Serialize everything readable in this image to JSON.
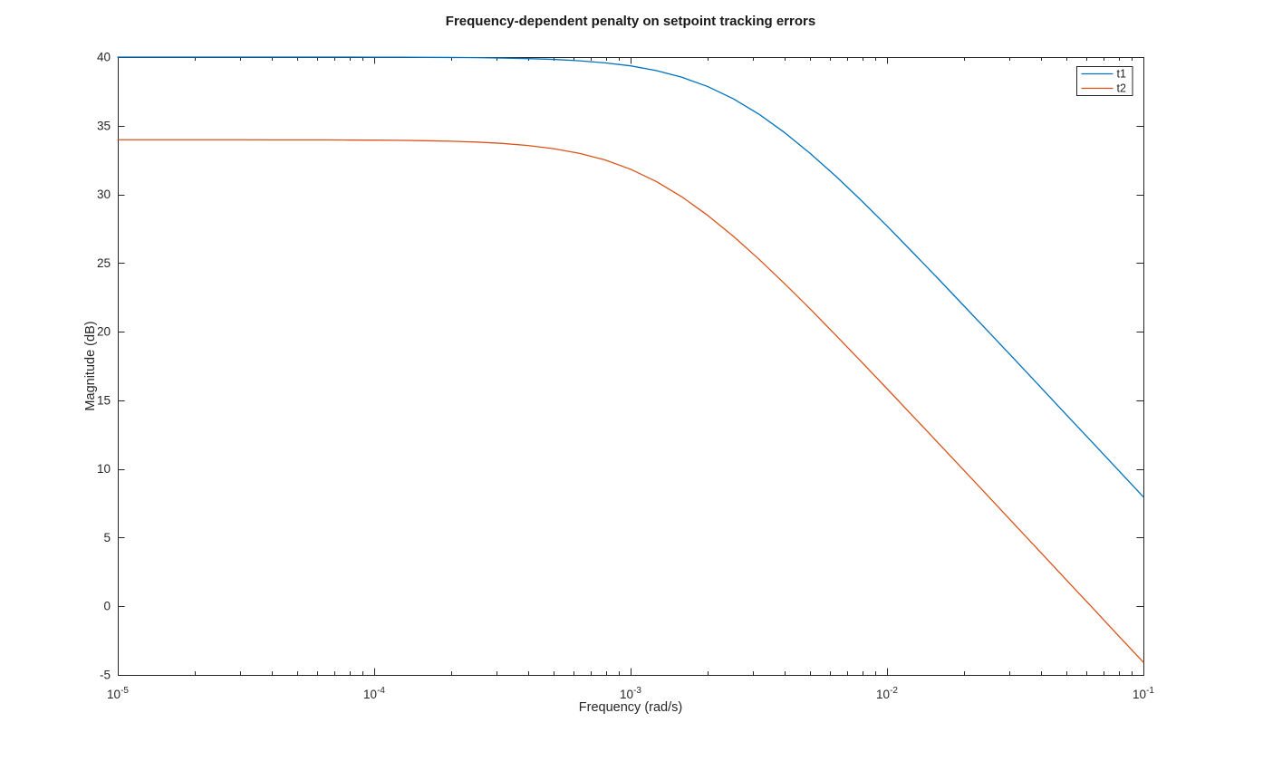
{
  "figure": {
    "background": "#ffffff",
    "axis_color": "#262626",
    "text_color": "#262626",
    "title_color": "#1a1a1a"
  },
  "chart_data": {
    "type": "line",
    "title": "Frequency-dependent penalty on setpoint tracking errors",
    "xlabel": "Frequency (rad/s)",
    "ylabel": "Magnitude (dB)",
    "x_scale": "log",
    "xlim_log10": [
      -5,
      -1
    ],
    "ylim": [
      -5,
      40
    ],
    "grid": false,
    "x_tick_exponents": [
      -5,
      -4,
      -3,
      -2,
      -1
    ],
    "x_tick_base": "10",
    "y_tick_values": [
      -5,
      0,
      5,
      10,
      15,
      20,
      25,
      30,
      35,
      40
    ],
    "legend": {
      "position": "northeast",
      "entries": [
        {
          "label": "t1",
          "color": "#0072BD"
        },
        {
          "label": "t2",
          "color": "#D95319"
        }
      ]
    },
    "x_log10": [
      -5,
      -4.9,
      -4.8,
      -4.7,
      -4.6,
      -4.5,
      -4.4,
      -4.3,
      -4.2,
      -4.1,
      -4,
      -3.9,
      -3.8,
      -3.7,
      -3.6,
      -3.5,
      -3.4,
      -3.3,
      -3.2,
      -3.1,
      -3,
      -2.9,
      -2.8,
      -2.7,
      -2.6,
      -2.5,
      -2.4,
      -2.3,
      -2.2,
      -2.1,
      -2,
      -1.9,
      -1.8,
      -1.7,
      -1.6,
      -1.5,
      -1.4,
      -1.3,
      -1.2,
      -1.1,
      -1
    ],
    "series": [
      {
        "name": "t1",
        "color": "#0072BD",
        "low_freq_gain_db": 40,
        "corner_freq_rad_s": 0.0025,
        "values_db": [
          40,
          40,
          40,
          40,
          40,
          40,
          40,
          40,
          40,
          40,
          39.99,
          39.99,
          39.98,
          39.97,
          39.96,
          39.93,
          39.89,
          39.83,
          39.73,
          39.58,
          39.36,
          39.02,
          38.53,
          37.86,
          36.97,
          35.85,
          34.51,
          32.99,
          31.33,
          29.55,
          27.7,
          25.78,
          23.85,
          21.88,
          19.91,
          17.93,
          15.94,
          13.94,
          11.95,
          9.96,
          7.96
        ]
      },
      {
        "name": "t2",
        "color": "#D95319",
        "low_freq_gain_db": 33.98,
        "corner_freq_rad_s": 0.00125,
        "values_db": [
          33.98,
          33.98,
          33.98,
          33.98,
          33.98,
          33.98,
          33.97,
          33.97,
          33.97,
          33.96,
          33.95,
          33.94,
          33.91,
          33.87,
          33.81,
          33.71,
          33.56,
          33.33,
          32.99,
          32.51,
          31.83,
          30.94,
          29.82,
          28.48,
          26.96,
          25.29,
          23.51,
          21.66,
          19.75,
          17.81,
          15.85,
          13.87,
          11.89,
          9.9,
          7.91,
          5.91,
          3.91,
          1.91,
          -0.08,
          -2.09,
          -4.08
        ]
      }
    ]
  }
}
